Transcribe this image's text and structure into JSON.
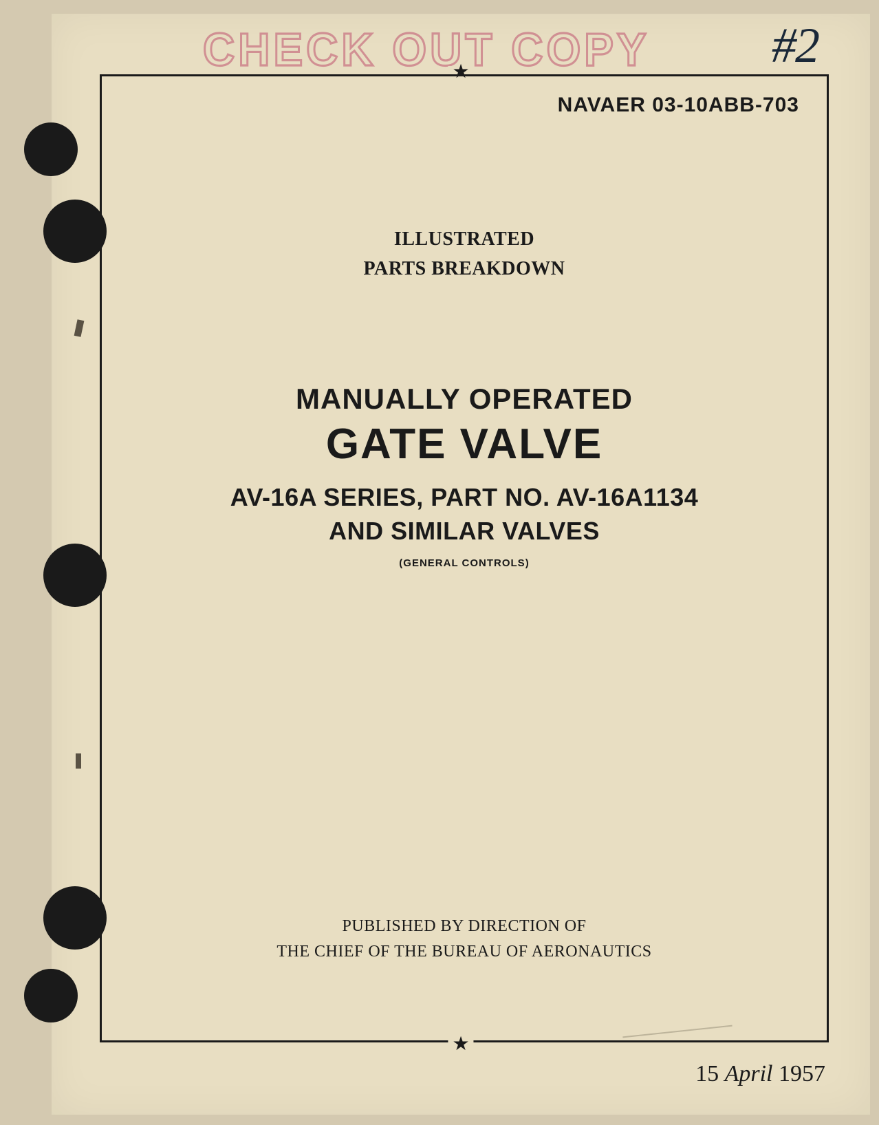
{
  "stamp_text": "CHECK OUT COPY",
  "handwritten_note": "#2",
  "doc_number": "NAVAER 03-10ABB-703",
  "subtitle_line1": "ILLUSTRATED",
  "subtitle_line2": "PARTS BREAKDOWN",
  "title_line1": "MANUALLY OPERATED",
  "title_line2": "GATE VALVE",
  "title_line3a": "AV-16A SERIES, PART NO. AV-16A1134",
  "title_line3b": "AND SIMILAR VALVES",
  "title_line4": "(GENERAL CONTROLS)",
  "publisher_line1": "PUBLISHED BY DIRECTION OF",
  "publisher_line2": "THE CHIEF OF THE BUREAU OF AERONAUTICS",
  "date_day": "15",
  "date_month": "April",
  "date_year": "1957",
  "star_glyph": "★",
  "colors": {
    "page_bg": "#e8dec2",
    "body_bg": "#d4c9b0",
    "text": "#1a1a1a",
    "stamp": "rgba(190, 80, 110, 0.55)",
    "handwritten": "#1a2838"
  }
}
